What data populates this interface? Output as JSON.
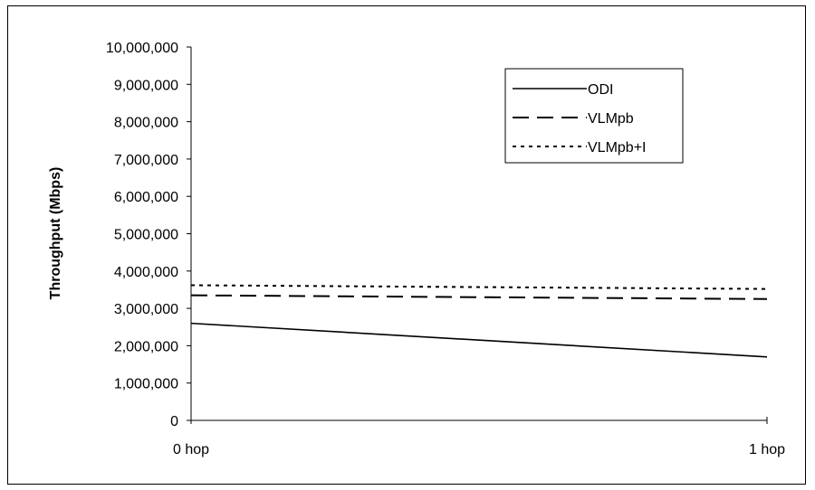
{
  "chart_data": {
    "type": "line",
    "title": "",
    "xlabel": "",
    "ylabel": "Throughput (Mbps)",
    "categories": [
      "0 hop",
      "1 hop"
    ],
    "ylim": [
      0,
      10000000
    ],
    "yticks": [
      0,
      1000000,
      2000000,
      3000000,
      4000000,
      5000000,
      6000000,
      7000000,
      8000000,
      9000000,
      10000000
    ],
    "ytick_labels": [
      "0",
      "1,000,000",
      "2,000,000",
      "3,000,000",
      "4,000,000",
      "5,000,000",
      "6,000,000",
      "7,000,000",
      "8,000,000",
      "9,000,000",
      "10,000,000"
    ],
    "grid": false,
    "legend_position": "top-right",
    "series": [
      {
        "name": "ODI",
        "values": [
          2600000,
          1700000
        ],
        "style": "solid",
        "color": "#000000"
      },
      {
        "name": "VLMpb",
        "values": [
          3350000,
          3250000
        ],
        "style": "dashed",
        "color": "#000000"
      },
      {
        "name": "VLMpb+I",
        "values": [
          3620000,
          3520000
        ],
        "style": "dotted",
        "color": "#000000"
      }
    ]
  }
}
